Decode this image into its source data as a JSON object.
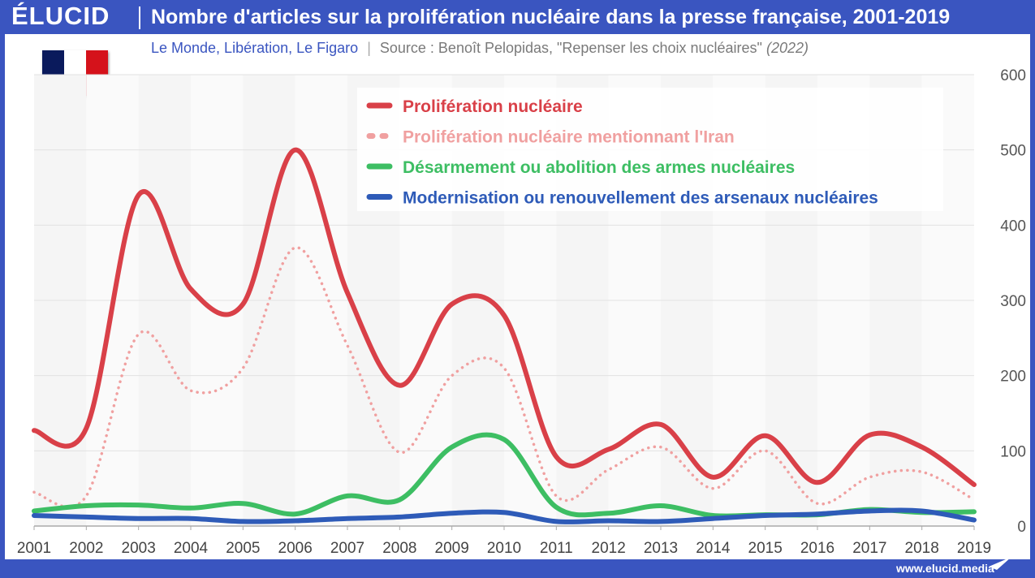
{
  "header": {
    "logo": "ÉLUCID",
    "title": "Nombre d'articles sur la prolifération nucléaire dans la presse française, 2001-2019",
    "source_publications": "Le Monde, Libération, Le Figaro",
    "source_separator": "|",
    "source_text": "Source : Benoît Pelopidas, \"Repenser les choix nucléaires\"",
    "source_year": "(2022)"
  },
  "footer": {
    "url": "www.elucid.media"
  },
  "colors": {
    "frame": "#3a55c0",
    "flag_blue": "#0a1a5c",
    "flag_white": "#ffffff",
    "flag_red": "#d5121b"
  },
  "chart_data": {
    "type": "line",
    "x": [
      2001,
      2002,
      2003,
      2004,
      2005,
      2006,
      2007,
      2008,
      2009,
      2010,
      2011,
      2012,
      2013,
      2014,
      2015,
      2016,
      2017,
      2018,
      2019
    ],
    "categories": [
      "2001",
      "2002",
      "2003",
      "2004",
      "2005",
      "2006",
      "2007",
      "2008",
      "2009",
      "2010",
      "2011",
      "2012",
      "2013",
      "2014",
      "2015",
      "2016",
      "2017",
      "2018",
      "2019"
    ],
    "ylim": [
      0,
      600
    ],
    "yticks": [
      "0",
      "100",
      "200",
      "300",
      "400",
      "500",
      "600"
    ],
    "y_axis_side": "right",
    "grid": true,
    "legend_position": "top-center",
    "series": [
      {
        "name": "Prolifération nucléaire",
        "color": "#d94048",
        "style": "solid",
        "values": [
          127,
          130,
          440,
          315,
          295,
          500,
          310,
          187,
          295,
          280,
          92,
          102,
          135,
          65,
          120,
          58,
          121,
          105,
          55
        ]
      },
      {
        "name": "Prolifération nucléaire mentionnant l'Iran",
        "color": "#f0a0a0",
        "style": "dotted",
        "values": [
          45,
          40,
          255,
          180,
          210,
          370,
          240,
          98,
          200,
          210,
          40,
          75,
          105,
          50,
          100,
          30,
          65,
          72,
          35
        ]
      },
      {
        "name": "Désarmement ou abolition des armes nucléaires",
        "color": "#3dbe63",
        "style": "solid",
        "values": [
          20,
          27,
          28,
          24,
          30,
          16,
          40,
          35,
          105,
          115,
          25,
          17,
          27,
          14,
          15,
          15,
          22,
          18,
          19
        ]
      },
      {
        "name": "Modernisation ou renouvellement des arsenaux nucléaires",
        "color": "#2e5bb8",
        "style": "solid",
        "values": [
          14,
          12,
          10,
          10,
          6,
          7,
          10,
          12,
          17,
          18,
          6,
          7,
          6,
          10,
          14,
          16,
          20,
          20,
          8
        ]
      }
    ]
  }
}
